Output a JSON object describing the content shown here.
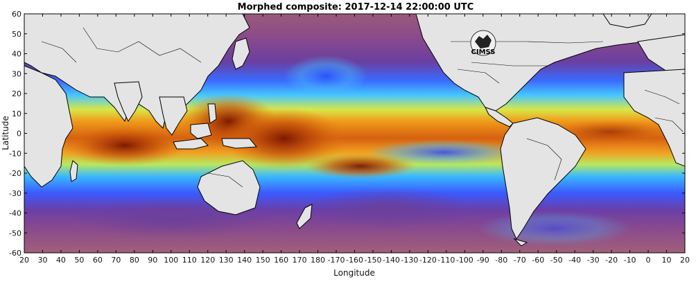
{
  "title": "Morphed composite: 2017-12-14 22:00:00 UTC",
  "xlabel": "Longitude",
  "ylabel": "Latitude",
  "x_ticks": [
    "20",
    "30",
    "40",
    "50",
    "60",
    "70",
    "80",
    "90",
    "100",
    "110",
    "120",
    "130",
    "140",
    "150",
    "160",
    "170",
    "180",
    "-170",
    "-160",
    "-150",
    "-140",
    "-130",
    "-120",
    "-110",
    "-100",
    "-90",
    "-80",
    "-70",
    "-60",
    "-50",
    "-40",
    "-30",
    "-20",
    "-10",
    "0",
    "10",
    "20"
  ],
  "y_ticks": [
    "60",
    "50",
    "40",
    "30",
    "20",
    "10",
    "0",
    "-10",
    "-20",
    "-30",
    "-40",
    "-50",
    "-60"
  ],
  "logo": {
    "name": "cimss-logo",
    "text": "CIMSS"
  },
  "colors": {
    "background_ocean": "#8a4a8c",
    "land": "#e4e4e4",
    "tpw_low": "#7a3f8f",
    "tpw_mid_low": "#2f7fff",
    "tpw_mid": "#4fd3ff",
    "tpw_mid_high": "#ffe84a",
    "tpw_high": "#e06a10",
    "tpw_max": "#8a1a00"
  }
}
